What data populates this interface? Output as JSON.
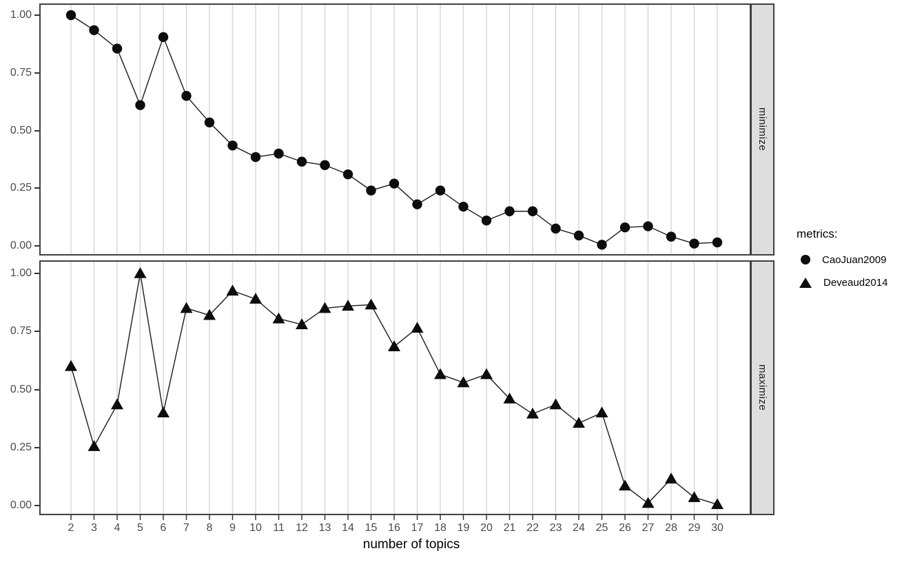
{
  "chart_data": {
    "type": "line",
    "xlabel": "number of topics",
    "ylim": [
      0,
      1
    ],
    "grid": "vertical-major-only",
    "legend_position": "right",
    "y_tick_labels": [
      "1.00",
      "0.75",
      "0.50",
      "0.25",
      "0.00"
    ],
    "x": [
      2,
      3,
      4,
      5,
      6,
      7,
      8,
      9,
      10,
      11,
      12,
      13,
      14,
      15,
      16,
      17,
      18,
      19,
      20,
      21,
      22,
      23,
      24,
      25,
      26,
      27,
      28,
      29,
      30
    ],
    "facets": [
      {
        "strip_label": "minimize",
        "series": "CaoJuan2009"
      },
      {
        "strip_label": "maximize",
        "series": "Deveaud2014"
      }
    ],
    "series": [
      {
        "name": "CaoJuan2009",
        "facet": "minimize",
        "marker": "circle",
        "values": [
          1.0,
          0.935,
          0.855,
          0.61,
          0.905,
          0.65,
          0.535,
          0.435,
          0.385,
          0.4,
          0.365,
          0.35,
          0.31,
          0.24,
          0.27,
          0.18,
          0.24,
          0.17,
          0.11,
          0.15,
          0.15,
          0.075,
          0.045,
          0.005,
          0.08,
          0.085,
          0.04,
          0.01,
          0.015
        ]
      },
      {
        "name": "Deveaud2014",
        "facet": "maximize",
        "marker": "triangle",
        "values": [
          0.6,
          0.255,
          0.435,
          1.0,
          0.4,
          0.85,
          0.82,
          0.925,
          0.89,
          0.805,
          0.78,
          0.85,
          0.86,
          0.865,
          0.685,
          0.765,
          0.565,
          0.53,
          0.565,
          0.46,
          0.395,
          0.435,
          0.355,
          0.4,
          0.085,
          0.01,
          0.115,
          0.035,
          0.005
        ]
      }
    ]
  },
  "legend": {
    "title": "metrics:",
    "items": [
      {
        "label": "CaoJuan2009",
        "marker": "circle"
      },
      {
        "label": "Deveaud2014",
        "marker": "triangle"
      }
    ]
  },
  "colors": {
    "line": "#1a1a1a",
    "marker": "#0d0d0d",
    "grid": "#d6d6d6",
    "panel_border": "#3f3f3f",
    "strip_bg": "#dedede",
    "tick_mark": "#333333",
    "tick_label": "#4a4a4a",
    "axis_title": "#000000"
  }
}
